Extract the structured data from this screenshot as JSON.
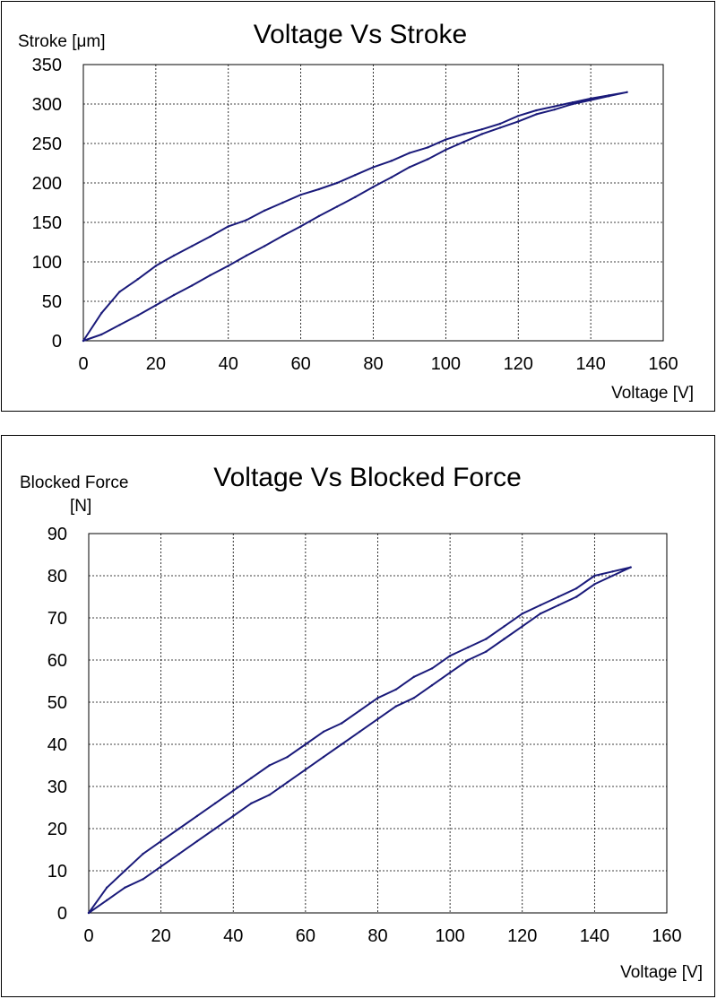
{
  "chart_data": [
    {
      "type": "line",
      "title": "Voltage Vs Stroke",
      "xlabel": "Voltage [V]",
      "ylabel": "Stroke [μm]",
      "ylabel_lines": [
        "Stroke [μm]"
      ],
      "xlim": [
        0,
        160
      ],
      "ylim": [
        0,
        350
      ],
      "xticks": [
        0,
        20,
        40,
        60,
        80,
        100,
        120,
        140,
        160
      ],
      "yticks": [
        0,
        50,
        100,
        150,
        200,
        250,
        300,
        350
      ],
      "grid": true,
      "line_color": "#1a1a7a",
      "series": [
        {
          "x": [
            0,
            5,
            10,
            15,
            20,
            25,
            30,
            35,
            40,
            45,
            50,
            55,
            60,
            65,
            70,
            75,
            80,
            85,
            90,
            95,
            100,
            105,
            110,
            115,
            120,
            125,
            130,
            135,
            140,
            145,
            150,
            145,
            140,
            135,
            130,
            125,
            120,
            115,
            110,
            105,
            100,
            95,
            90,
            85,
            80,
            75,
            70,
            65,
            60,
            55,
            50,
            45,
            40,
            35,
            30,
            25,
            20,
            15,
            10,
            5,
            0
          ],
          "y": [
            0,
            8,
            20,
            32,
            45,
            58,
            70,
            83,
            95,
            108,
            120,
            133,
            145,
            158,
            170,
            182,
            195,
            207,
            220,
            230,
            242,
            252,
            262,
            270,
            278,
            287,
            293,
            300,
            305,
            310,
            315,
            311,
            307,
            302,
            297,
            292,
            285,
            275,
            268,
            262,
            255,
            245,
            238,
            228,
            220,
            210,
            200,
            192,
            185,
            175,
            165,
            153,
            145,
            132,
            120,
            108,
            95,
            78,
            62,
            35,
            0
          ]
        }
      ]
    },
    {
      "type": "line",
      "title": "Voltage Vs Blocked Force",
      "xlabel": "Voltage [V]",
      "ylabel": "Blocked Force [N]",
      "ylabel_lines": [
        "Blocked Force",
        "[N]"
      ],
      "xlim": [
        0,
        160
      ],
      "ylim": [
        0,
        90
      ],
      "xticks": [
        0,
        20,
        40,
        60,
        80,
        100,
        120,
        140,
        160
      ],
      "yticks": [
        0,
        10,
        20,
        30,
        40,
        50,
        60,
        70,
        80,
        90
      ],
      "grid": true,
      "line_color": "#1a1a7a",
      "series": [
        {
          "x": [
            0,
            5,
            10,
            15,
            20,
            25,
            30,
            35,
            40,
            45,
            50,
            55,
            60,
            65,
            70,
            75,
            80,
            85,
            90,
            95,
            100,
            105,
            110,
            115,
            120,
            125,
            130,
            135,
            140,
            145,
            150,
            145,
            140,
            135,
            130,
            125,
            120,
            115,
            110,
            105,
            100,
            95,
            90,
            85,
            80,
            75,
            70,
            65,
            60,
            55,
            50,
            45,
            40,
            35,
            30,
            25,
            20,
            15,
            10,
            5,
            0
          ],
          "y": [
            0,
            3,
            6,
            8,
            11,
            14,
            17,
            20,
            23,
            26,
            28,
            31,
            34,
            37,
            40,
            43,
            46,
            49,
            51,
            54,
            57,
            60,
            62,
            65,
            68,
            71,
            73,
            75,
            78,
            80,
            82,
            81,
            80,
            77,
            75,
            73,
            71,
            68,
            65,
            63,
            61,
            58,
            56,
            53,
            51,
            48,
            45,
            43,
            40,
            37,
            35,
            32,
            29,
            26,
            23,
            20,
            17,
            14,
            10,
            6,
            0
          ]
        }
      ]
    }
  ]
}
